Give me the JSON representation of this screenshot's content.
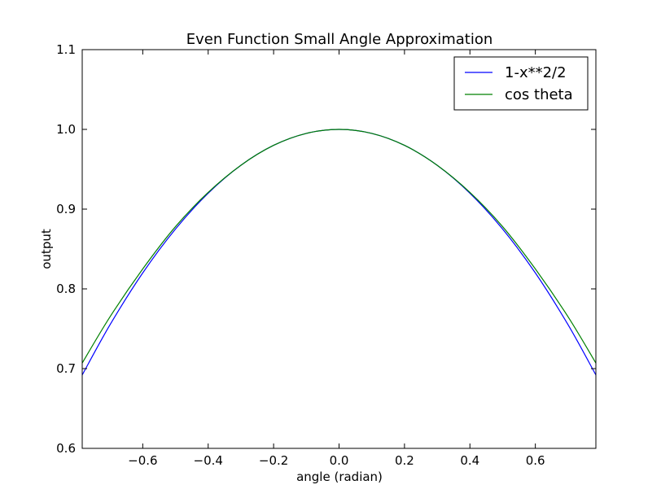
{
  "chart_data": {
    "type": "line",
    "title": "Even Function Small Angle Approximation",
    "xlabel": "angle (radian)",
    "ylabel": "output",
    "xlim": [
      -0.785,
      0.785
    ],
    "ylim": [
      0.6,
      1.1
    ],
    "xticks": [
      -0.6,
      -0.4,
      -0.2,
      0.0,
      0.2,
      0.4,
      0.6
    ],
    "xtick_labels": [
      "−0.6",
      "−0.4",
      "−0.2",
      "0.0",
      "0.2",
      "0.4",
      "0.6"
    ],
    "yticks": [
      0.6,
      0.7,
      0.8,
      0.9,
      1.0,
      1.1
    ],
    "ytick_labels": [
      "0.6",
      "0.7",
      "0.8",
      "0.9",
      "1.0",
      "1.1"
    ],
    "grid": false,
    "legend_position": "top-right",
    "series": [
      {
        "name": "1-x**2/2",
        "color": "#0000ff",
        "x": [
          -0.785,
          -0.7,
          -0.6,
          -0.5,
          -0.4,
          -0.3,
          -0.2,
          -0.1,
          0.0,
          0.1,
          0.2,
          0.3,
          0.4,
          0.5,
          0.6,
          0.7,
          0.785
        ],
        "y": [
          0.692,
          0.755,
          0.82,
          0.875,
          0.92,
          0.955,
          0.98,
          0.995,
          1.0,
          0.995,
          0.98,
          0.955,
          0.92,
          0.875,
          0.82,
          0.755,
          0.692
        ]
      },
      {
        "name": "cos theta",
        "color": "#008000",
        "x": [
          -0.785,
          -0.7,
          -0.6,
          -0.5,
          -0.4,
          -0.3,
          -0.2,
          -0.1,
          0.0,
          0.1,
          0.2,
          0.3,
          0.4,
          0.5,
          0.6,
          0.7,
          0.785
        ],
        "y": [
          0.707,
          0.765,
          0.825,
          0.878,
          0.921,
          0.955,
          0.98,
          0.995,
          1.0,
          0.995,
          0.98,
          0.955,
          0.921,
          0.878,
          0.825,
          0.765,
          0.707
        ]
      }
    ]
  }
}
